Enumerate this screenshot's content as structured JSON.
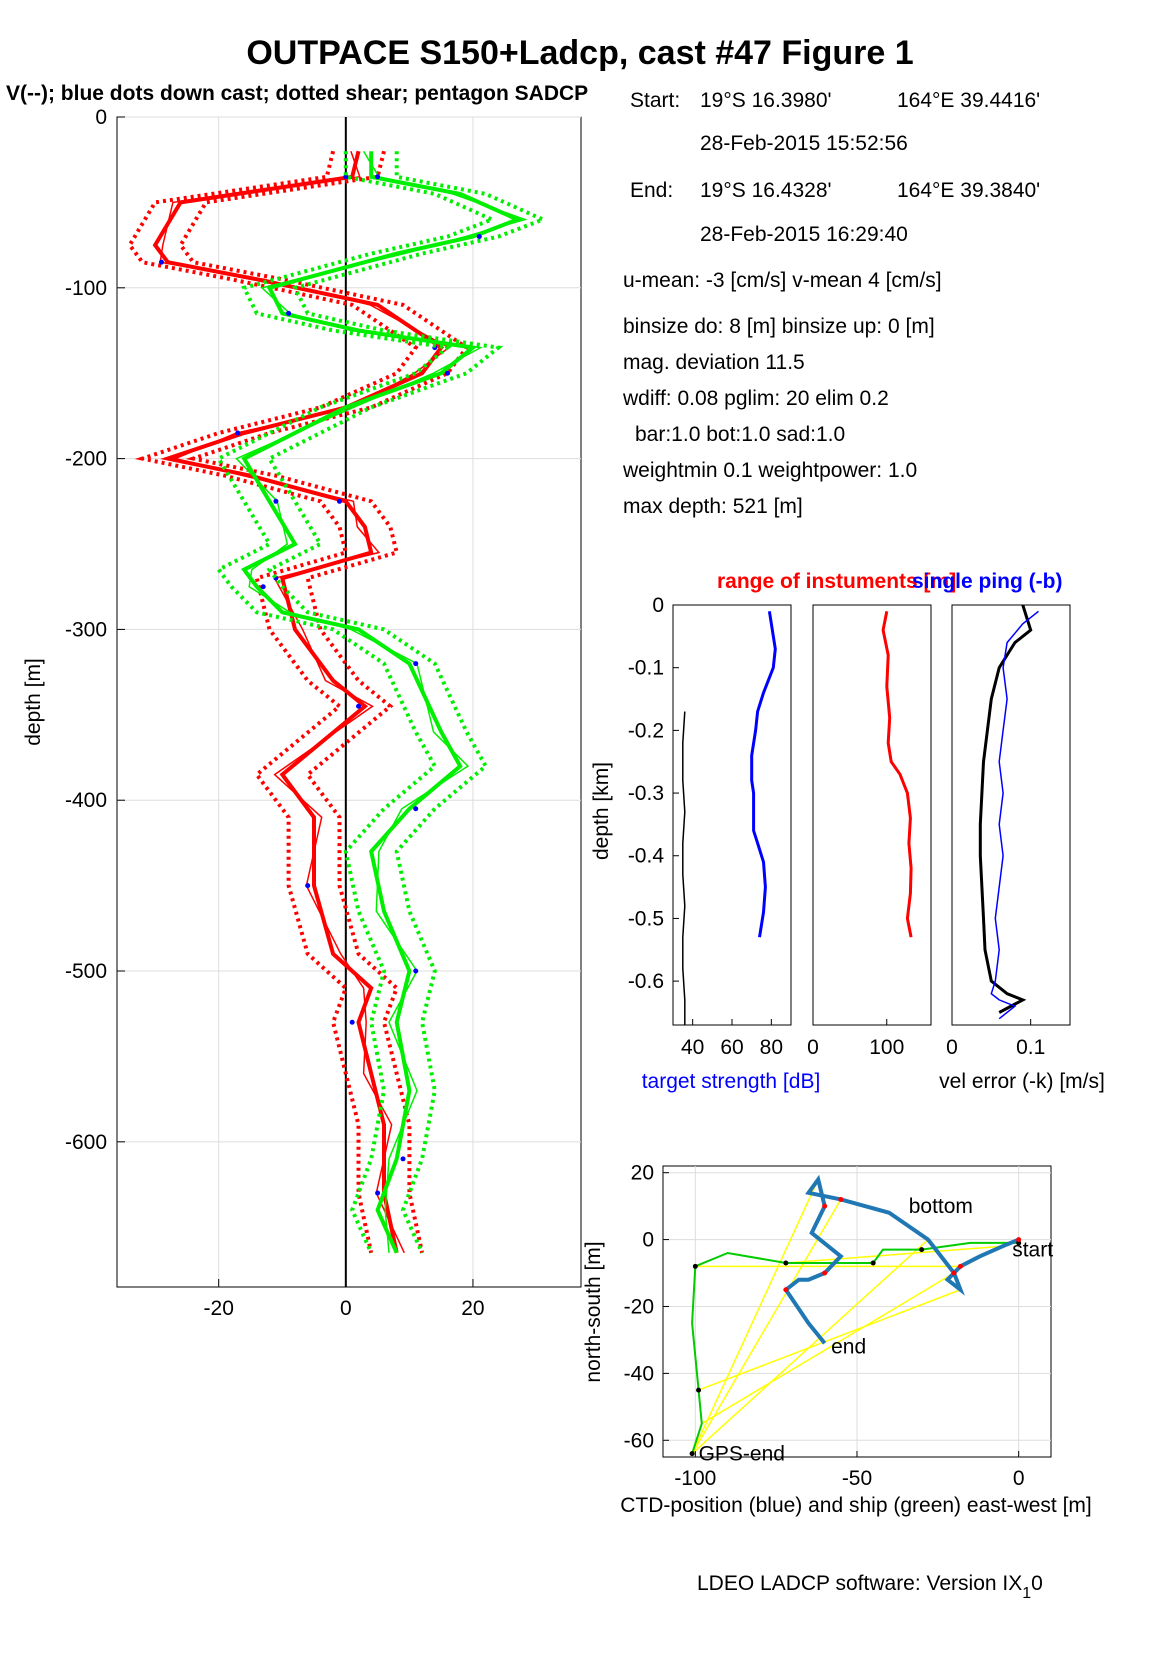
{
  "title": "OUTPACE S150+Ladcp, cast #47  Figure 1",
  "subtitle": "V(--); blue dots down cast; dotted shear; pentagon SADCP",
  "footer": "LDEO LADCP software: Version IX",
  "footer_sub": "1",
  "footer_end": "0",
  "info": {
    "start_label": "Start:",
    "start_lat": "19°S 16.3980'",
    "start_lon": "164°E 39.4416'",
    "start_time": "28-Feb-2015 15:52:56",
    "end_label": "End:",
    "end_lat": "19°S 16.4328'",
    "end_lon": "164°E 39.3840'",
    "end_time": "28-Feb-2015 16:29:40",
    "means": "u-mean:  -3 [cm/s]    v-mean   4 [cm/s]",
    "binsize": "binsize do: 8 [m]  binsize up:  0 [m]",
    "magdev": "mag. deviation 11.5",
    "wdiff": "wdiff: 0.08  pglim: 20  elim 0.2",
    "weights": "bar:1.0 bot:1.0 sad:1.0",
    "weightmin": "weightmin 0.1  weightpower: 1.0",
    "maxdepth": "max depth: 521 [m]"
  },
  "colors": {
    "u": "#ff0000",
    "v": "#00ee00",
    "dots": "#0000ff",
    "target": "#0000ff",
    "range": "#ff0000",
    "ctd_track": "#1f77b4",
    "ship_track": "#00cc00",
    "lines": "#ffff00",
    "black": "#000000"
  },
  "chart_data": [
    {
      "type": "line",
      "name": "profile",
      "ylabel": "depth [m]",
      "xlim": [
        -36,
        37
      ],
      "ylim": [
        -685,
        0
      ],
      "xticks": [
        -20,
        0,
        20
      ],
      "yticks": [
        0,
        -100,
        -200,
        -300,
        -400,
        -500,
        -600
      ],
      "series": [
        {
          "name": "u",
          "color": "#ff0000",
          "x": [
            2,
            1,
            -26,
            -30,
            -28,
            -14,
            5,
            15,
            12,
            0,
            -16,
            -28,
            -15,
            0,
            3,
            4,
            -10,
            -8,
            -2,
            3,
            -10,
            -5,
            -5,
            -2,
            4,
            2,
            4,
            6,
            6,
            8
          ],
          "y": [
            -20,
            -35,
            -50,
            -75,
            -85,
            -95,
            -110,
            -135,
            -150,
            -170,
            -185,
            -200,
            -210,
            -225,
            -240,
            -255,
            -270,
            -300,
            -330,
            -345,
            -385,
            -410,
            -450,
            -490,
            -510,
            -530,
            -560,
            -590,
            -630,
            -665
          ]
        },
        {
          "name": "v",
          "color": "#00ee00",
          "x": [
            4,
            4,
            18,
            27,
            20,
            8,
            -12,
            -10,
            2,
            20,
            15,
            0,
            -16,
            -12,
            -8,
            -16,
            -14,
            -10,
            2,
            10,
            15,
            18,
            10,
            4,
            6,
            10,
            8,
            10,
            8,
            5,
            8
          ],
          "y": [
            -20,
            -35,
            -45,
            -60,
            -70,
            -80,
            -100,
            -115,
            -125,
            -135,
            -150,
            -170,
            -200,
            -225,
            -250,
            -265,
            -275,
            -290,
            -300,
            -320,
            -360,
            -380,
            -405,
            -430,
            -465,
            -500,
            -530,
            -570,
            -610,
            -640,
            -665
          ]
        }
      ]
    },
    {
      "type": "line",
      "name": "target strength",
      "title": "",
      "xlabel": "target strength [dB]",
      "ylabel": "depth [km]",
      "xlim": [
        30,
        90
      ],
      "ylim": [
        -0.67,
        0
      ],
      "xticks": [
        40,
        60,
        80
      ],
      "yticks": [
        0,
        -0.1,
        -0.2,
        -0.3,
        -0.4,
        -0.5,
        -0.6
      ],
      "series": [
        {
          "name": "target strength",
          "color": "#0000ff",
          "x": [
            79,
            82,
            81,
            76,
            73,
            72,
            70,
            70,
            71,
            71,
            71,
            73,
            76,
            77,
            76,
            74
          ],
          "y": [
            -0.01,
            -0.07,
            -0.1,
            -0.14,
            -0.17,
            -0.2,
            -0.24,
            -0.28,
            -0.3,
            -0.33,
            -0.36,
            -0.38,
            -0.41,
            -0.45,
            -0.49,
            -0.53
          ]
        },
        {
          "name": "",
          "color": "#000000",
          "x": [
            36,
            35,
            35,
            36,
            35,
            35,
            36,
            35,
            35,
            36,
            36
          ],
          "y": [
            -0.17,
            -0.22,
            -0.28,
            -0.33,
            -0.38,
            -0.43,
            -0.48,
            -0.53,
            -0.58,
            -0.63,
            -0.67
          ]
        }
      ]
    },
    {
      "type": "line",
      "name": "range",
      "title": "range of instuments [m]",
      "xlim": [
        0,
        160
      ],
      "ylim": [
        -0.67,
        0
      ],
      "xticks": [
        0,
        100
      ],
      "series": [
        {
          "name": "range",
          "color": "#ff0000",
          "x": [
            100,
            95,
            102,
            100,
            104,
            102,
            106,
            118,
            128,
            132,
            130,
            133,
            132,
            128,
            133
          ],
          "y": [
            -0.01,
            -0.04,
            -0.08,
            -0.13,
            -0.18,
            -0.22,
            -0.25,
            -0.27,
            -0.3,
            -0.34,
            -0.38,
            -0.42,
            -0.46,
            -0.5,
            -0.53
          ]
        }
      ]
    },
    {
      "type": "line",
      "name": "velocity error",
      "title": "single ping (-b)",
      "xlabel": "vel error (-k) [m/s]",
      "xlim": [
        0,
        0.15
      ],
      "ylim": [
        -0.67,
        0
      ],
      "xticks": [
        0,
        0.1
      ],
      "series": [
        {
          "name": "vel error",
          "color": "#000000",
          "x": [
            0.09,
            0.095,
            0.1,
            0.08,
            0.06,
            0.05,
            0.045,
            0.04,
            0.038,
            0.036,
            0.036,
            0.038,
            0.04,
            0.042,
            0.05,
            0.07,
            0.09,
            0.06
          ],
          "y": [
            0,
            -0.02,
            -0.04,
            -0.06,
            -0.1,
            -0.15,
            -0.2,
            -0.25,
            -0.3,
            -0.35,
            -0.4,
            -0.45,
            -0.5,
            -0.55,
            -0.6,
            -0.62,
            -0.63,
            -0.65
          ]
        },
        {
          "name": "single ping",
          "color": "#0000ff",
          "x": [
            0.11,
            0.09,
            0.07,
            0.065,
            0.07,
            0.065,
            0.06,
            0.065,
            0.06,
            0.065,
            0.06,
            0.055,
            0.06,
            0.055,
            0.05,
            0.06,
            0.08,
            0.06
          ],
          "y": [
            -0.01,
            -0.03,
            -0.06,
            -0.1,
            -0.15,
            -0.2,
            -0.25,
            -0.3,
            -0.35,
            -0.4,
            -0.45,
            -0.5,
            -0.55,
            -0.6,
            -0.62,
            -0.63,
            -0.64,
            -0.66
          ]
        }
      ]
    },
    {
      "type": "line",
      "name": "position",
      "xlabel": "CTD-position (blue) and ship (green) east-west [m]",
      "ylabel": "north-south [m]",
      "xlim": [
        -110,
        10
      ],
      "ylim": [
        -65,
        22
      ],
      "xticks": [
        -100,
        -50,
        0
      ],
      "yticks": [
        20,
        0,
        -20,
        -40,
        -60
      ],
      "series": [
        {
          "name": "CTD-position",
          "color": "#1f77b4",
          "x": [
            0,
            -5,
            -12,
            -18,
            -22,
            -18,
            -20,
            -28,
            -40,
            -55,
            -65,
            -62,
            -60,
            -64,
            -55,
            -60,
            -65,
            -68,
            -72,
            -65,
            -60
          ],
          "y": [
            0,
            -2,
            -5,
            -8,
            -12,
            -15,
            -10,
            0,
            8,
            12,
            14,
            18,
            10,
            2,
            -5,
            -10,
            -12,
            -12,
            -15,
            -25,
            -31
          ]
        },
        {
          "name": "ship",
          "color": "#00cc00",
          "x": [
            0,
            -15,
            -30,
            -42,
            -45,
            -60,
            -72,
            -90,
            -100,
            -101,
            -99,
            -98,
            -101
          ],
          "y": [
            -1,
            -1,
            -3,
            -3,
            -7,
            -7,
            -7,
            -4,
            -8,
            -25,
            -45,
            -55,
            -64
          ]
        }
      ],
      "labels": [
        {
          "text": "start",
          "x": -2,
          "y": -3
        },
        {
          "text": "end",
          "x": -58,
          "y": -32
        },
        {
          "text": "bottom",
          "x": -34,
          "y": 10
        },
        {
          "text": "GPS-end",
          "x": -99,
          "y": -64
        }
      ]
    }
  ]
}
